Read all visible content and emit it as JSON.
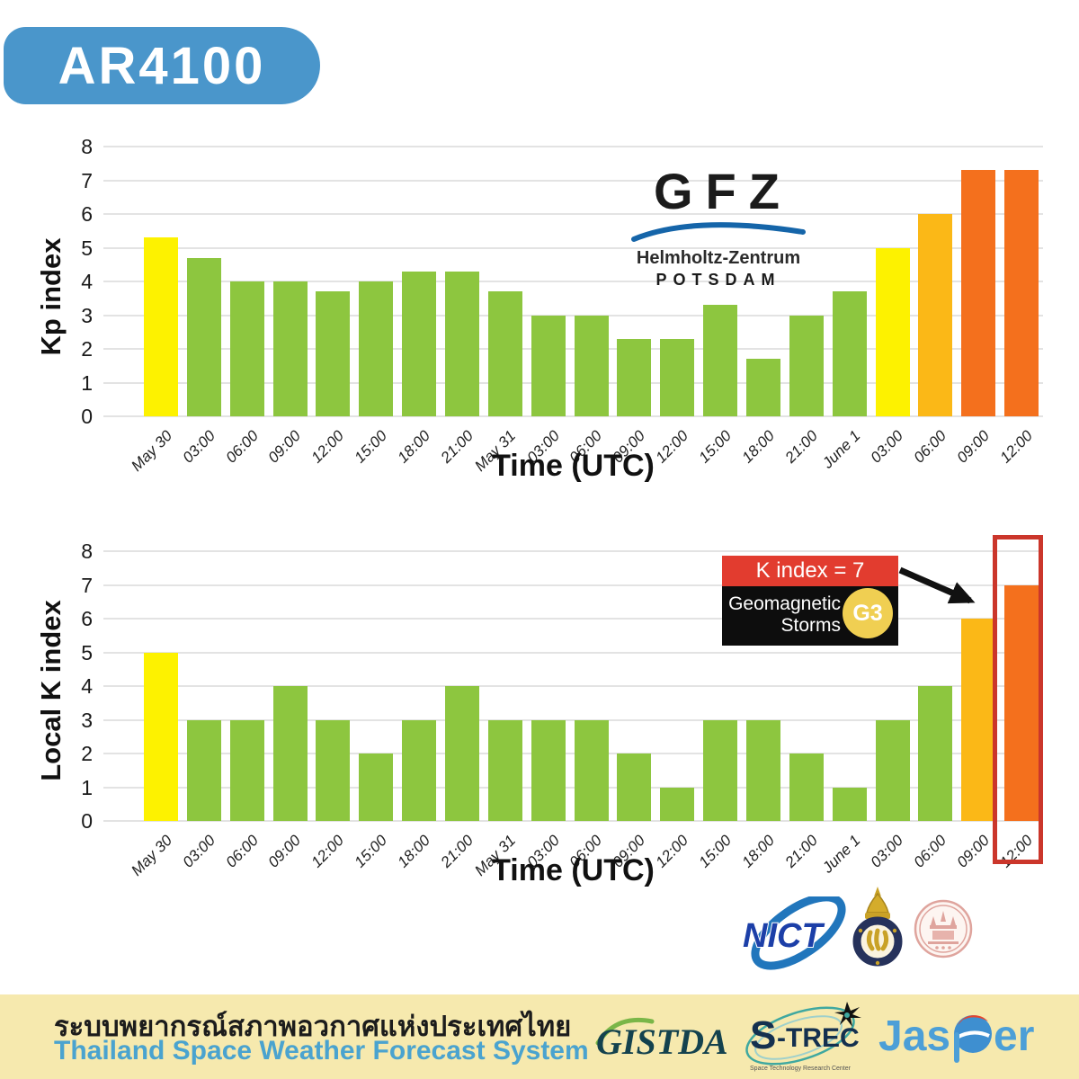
{
  "badge": {
    "label": "AR4100",
    "bg": "#4a96cb"
  },
  "palette": {
    "green": "#8dc63f",
    "yellow": "#fdf200",
    "amber": "#fbb817",
    "orange": "#f4701d"
  },
  "chart_data": [
    {
      "type": "bar",
      "ylabel": "Kp index",
      "xlabel": "Time (UTC)",
      "ylim": [
        0,
        8
      ],
      "yticks": [
        0,
        1,
        2,
        3,
        4,
        5,
        6,
        7,
        8
      ],
      "grid": true,
      "legend": "none",
      "categories": [
        "May 30",
        "03:00",
        "06:00",
        "09:00",
        "12:00",
        "15:00",
        "18:00",
        "21:00",
        "May 31",
        "03:00",
        "06:00",
        "09:00",
        "12:00",
        "15:00",
        "18:00",
        "21:00",
        "June 1",
        "03:00",
        "06:00",
        "09:00",
        "12:00"
      ],
      "values": [
        5.3,
        4.7,
        4.0,
        4.0,
        3.7,
        4.0,
        4.3,
        4.3,
        3.7,
        3.0,
        3.0,
        2.3,
        2.3,
        3.3,
        1.7,
        3.0,
        3.7,
        5.0,
        6.0,
        7.3,
        7.3
      ],
      "colors": [
        "yellow",
        "green",
        "green",
        "green",
        "green",
        "green",
        "green",
        "green",
        "green",
        "green",
        "green",
        "green",
        "green",
        "green",
        "green",
        "green",
        "green",
        "yellow",
        "amber",
        "orange",
        "orange"
      ]
    },
    {
      "type": "bar",
      "ylabel": "Local K index",
      "xlabel": "Time (UTC)",
      "ylim": [
        0,
        8
      ],
      "yticks": [
        0,
        1,
        2,
        3,
        4,
        5,
        6,
        7,
        8
      ],
      "grid": true,
      "legend": "none",
      "categories": [
        "May 30",
        "03:00",
        "06:00",
        "09:00",
        "12:00",
        "15:00",
        "18:00",
        "21:00",
        "May 31",
        "03:00",
        "06:00",
        "09:00",
        "12:00",
        "15:00",
        "18:00",
        "21:00",
        "June 1",
        "03:00",
        "06:00",
        "09:00",
        "12:00"
      ],
      "values": [
        5,
        3,
        3,
        4,
        3,
        2,
        3,
        4,
        3,
        3,
        3,
        2,
        1,
        3,
        3,
        2,
        1,
        3,
        4,
        6,
        7
      ],
      "colors": [
        "yellow",
        "green",
        "green",
        "green",
        "green",
        "green",
        "green",
        "green",
        "green",
        "green",
        "green",
        "green",
        "green",
        "green",
        "green",
        "green",
        "green",
        "green",
        "green",
        "amber",
        "orange"
      ],
      "highlight_last_color": "#cb362b"
    }
  ],
  "gfz_logo": {
    "title": "GFZ",
    "line1": "Helmholtz-Zentrum",
    "line2": "POTSDAM",
    "arc_color": "#1565a9"
  },
  "annotation": {
    "k_index_label": "K index = 7",
    "storm_line1": "Geomagnetic",
    "storm_line2": "Storms",
    "storm_scale": "G3",
    "header_bg": "#e23c2f",
    "body_bg": "#0d0d0d",
    "circle_bg": "#f0cf52"
  },
  "org_logos": {
    "nict": "NICT"
  },
  "banner": {
    "thai": "ระบบพยากรณ์สภาพอวกาศแห่งประเทศไทย",
    "english": "Thailand Space Weather Forecast System",
    "bg": "#f6e9ae",
    "english_color": "#4aa3cf",
    "gistda": "GISTDA",
    "strec_s": "S",
    "strec_rest": "-TREC",
    "strec_sub": "Space Technology Research Center",
    "jasper_a": "Jas",
    "jasper_b": "er"
  }
}
